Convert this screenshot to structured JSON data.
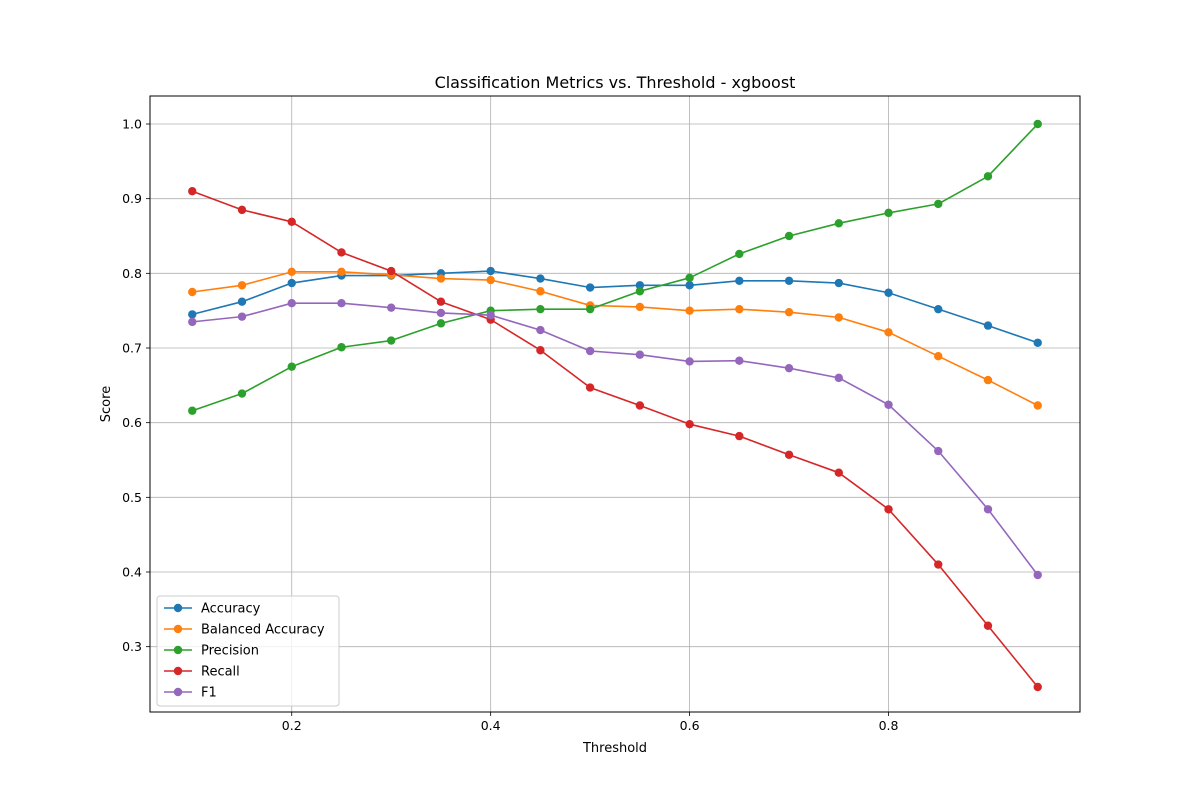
{
  "chart_data": {
    "type": "line",
    "title": "Classification Metrics vs. Threshold - xgboost",
    "xlabel": "Threshold",
    "ylabel": "Score",
    "xlim": [
      0.0575,
      0.9925
    ],
    "ylim": [
      0.2125,
      1.0375
    ],
    "xticks": [
      0.2,
      0.4,
      0.6,
      0.8
    ],
    "xtick_labels": [
      "0.2",
      "0.4",
      "0.6",
      "0.8"
    ],
    "yticks": [
      0.3,
      0.4,
      0.5,
      0.6,
      0.7,
      0.8,
      0.9,
      1.0
    ],
    "ytick_labels": [
      "0.3",
      "0.4",
      "0.5",
      "0.6",
      "0.7",
      "0.8",
      "0.9",
      "1.0"
    ],
    "grid": true,
    "legend_position": "lower-left",
    "x": [
      0.1,
      0.15,
      0.2,
      0.25,
      0.3,
      0.35,
      0.4,
      0.45,
      0.5,
      0.55,
      0.6,
      0.65,
      0.7,
      0.75,
      0.8,
      0.85,
      0.9,
      0.95
    ],
    "series": [
      {
        "name": "Accuracy",
        "color": "#1f77b4",
        "values": [
          0.745,
          0.762,
          0.787,
          0.797,
          0.797,
          0.8,
          0.803,
          0.793,
          0.781,
          0.784,
          0.784,
          0.79,
          0.79,
          0.787,
          0.774,
          0.752,
          0.73,
          0.707
        ]
      },
      {
        "name": "Balanced Accuracy",
        "color": "#ff7f0e",
        "values": [
          0.775,
          0.784,
          0.802,
          0.802,
          0.798,
          0.793,
          0.791,
          0.776,
          0.757,
          0.755,
          0.75,
          0.752,
          0.748,
          0.741,
          0.721,
          0.689,
          0.657,
          0.623
        ]
      },
      {
        "name": "Precision",
        "color": "#2ca02c",
        "values": [
          0.616,
          0.639,
          0.675,
          0.701,
          0.71,
          0.733,
          0.75,
          0.752,
          0.752,
          0.776,
          0.794,
          0.826,
          0.85,
          0.867,
          0.881,
          0.893,
          0.93,
          1.0
        ]
      },
      {
        "name": "Recall",
        "color": "#d62728",
        "values": [
          0.91,
          0.885,
          0.869,
          0.828,
          0.803,
          0.762,
          0.738,
          0.697,
          0.647,
          0.623,
          0.598,
          0.582,
          0.557,
          0.533,
          0.484,
          0.41,
          0.328,
          0.246
        ]
      },
      {
        "name": "F1",
        "color": "#9467bd",
        "values": [
          0.735,
          0.742,
          0.76,
          0.76,
          0.754,
          0.747,
          0.744,
          0.724,
          0.696,
          0.691,
          0.682,
          0.683,
          0.673,
          0.66,
          0.624,
          0.562,
          0.484,
          0.396
        ]
      }
    ]
  }
}
